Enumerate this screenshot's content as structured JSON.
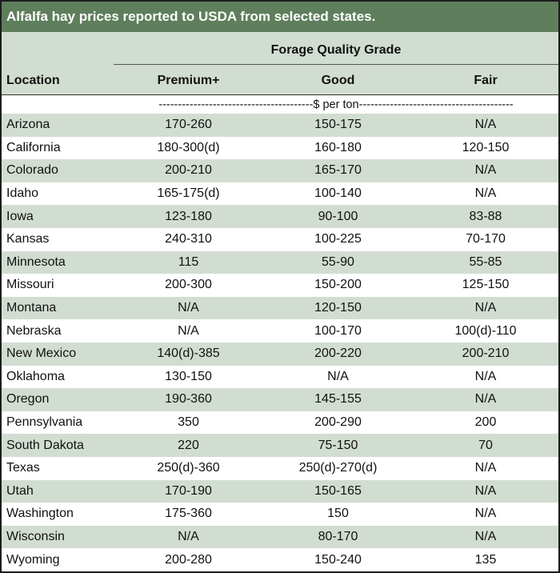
{
  "title": "Alfalfa hay prices reported to USDA from selected states.",
  "header": {
    "group_label": "Forage Quality Grade",
    "location_label": "Location",
    "columns": [
      "Premium+",
      "Good",
      "Fair"
    ]
  },
  "unit_label": "----------------------------------------$ per ton----------------------------------------",
  "rows": [
    {
      "location": "Arizona",
      "premium": "170-260",
      "good": "150-175",
      "fair": "N/A"
    },
    {
      "location": "California",
      "premium": "180-300(d)",
      "good": "160-180",
      "fair": "120-150"
    },
    {
      "location": "Colorado",
      "premium": "200-210",
      "good": "165-170",
      "fair": "N/A"
    },
    {
      "location": "Idaho",
      "premium": "165-175(d)",
      "good": "100-140",
      "fair": "N/A"
    },
    {
      "location": "Iowa",
      "premium": "123-180",
      "good": "90-100",
      "fair": "83-88"
    },
    {
      "location": "Kansas",
      "premium": "240-310",
      "good": "100-225",
      "fair": "70-170"
    },
    {
      "location": "Minnesota",
      "premium": "115",
      "good": "55-90",
      "fair": "55-85"
    },
    {
      "location": "Missouri",
      "premium": "200-300",
      "good": "150-200",
      "fair": "125-150"
    },
    {
      "location": "Montana",
      "premium": "N/A",
      "good": "120-150",
      "fair": "N/A"
    },
    {
      "location": "Nebraska",
      "premium": "N/A",
      "good": "100-170",
      "fair": "100(d)-110"
    },
    {
      "location": "New Mexico",
      "premium": "140(d)-385",
      "good": "200-220",
      "fair": "200-210"
    },
    {
      "location": "Oklahoma",
      "premium": "130-150",
      "good": "N/A",
      "fair": "N/A"
    },
    {
      "location": "Oregon",
      "premium": "190-360",
      "good": "145-155",
      "fair": "N/A"
    },
    {
      "location": "Pennsylvania",
      "premium": "350",
      "good": "200-290",
      "fair": "200"
    },
    {
      "location": "South Dakota",
      "premium": "220",
      "good": "75-150",
      "fair": "70"
    },
    {
      "location": "Texas",
      "premium": "250(d)-360",
      "good": "250(d)-270(d)",
      "fair": "N/A"
    },
    {
      "location": "Utah",
      "premium": "170-190",
      "good": "150-165",
      "fair": "N/A"
    },
    {
      "location": "Washington",
      "premium": "175-360",
      "good": "150",
      "fair": "N/A"
    },
    {
      "location": "Wisconsin",
      "premium": "N/A",
      "good": "80-170",
      "fair": "N/A"
    },
    {
      "location": "Wyoming",
      "premium": "200-280",
      "good": "150-240",
      "fair": "135"
    }
  ]
}
